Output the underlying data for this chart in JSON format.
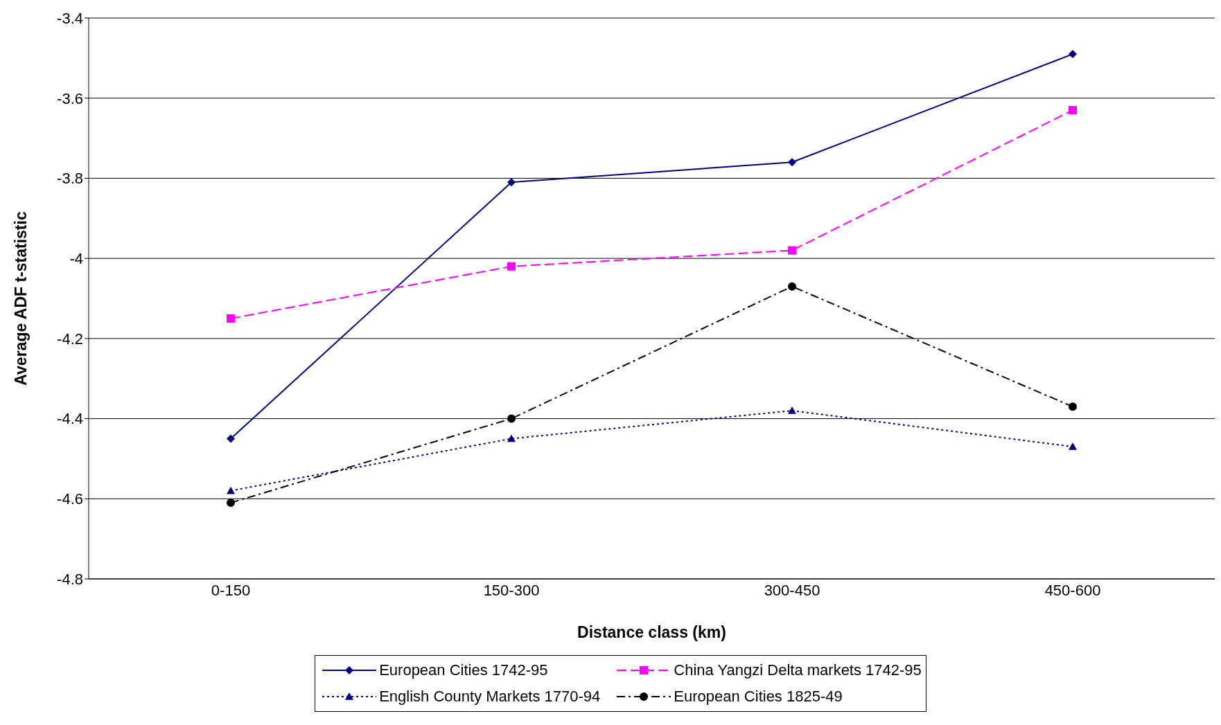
{
  "chart_data": {
    "type": "line",
    "xlabel": "Distance class (km)",
    "ylabel": "Average ADF t-statistic",
    "categories": [
      "0-150",
      "150-300",
      "300-450",
      "450-600"
    ],
    "series": [
      {
        "name": "European Cities 1742-95",
        "color": "#000080",
        "marker": "diamond",
        "line_style": "solid",
        "values": [
          -4.45,
          -3.81,
          -3.76,
          -3.49
        ]
      },
      {
        "name": "China Yangzi Delta markets 1742-95",
        "color": "#ff00ff",
        "marker": "square",
        "line_style": "dashed",
        "values": [
          -4.15,
          -4.02,
          -3.98,
          -3.63
        ]
      },
      {
        "name": "English County Markets 1770-94",
        "color": "#000080",
        "marker": "triangle",
        "line_style": "dotted",
        "values": [
          -4.58,
          -4.45,
          -4.38,
          -4.47
        ]
      },
      {
        "name": "European Cities 1825-49",
        "color": "#000000",
        "marker": "circle",
        "line_style": "dashdot",
        "values": [
          -4.61,
          -4.4,
          -4.07,
          -4.37
        ]
      }
    ],
    "ylim": [
      -4.8,
      -3.4
    ],
    "yticks": [
      -4.8,
      -4.6,
      -4.4,
      -4.2,
      -4,
      -3.8,
      -3.6,
      -3.4
    ],
    "grid": "y",
    "legend": "bottom"
  }
}
